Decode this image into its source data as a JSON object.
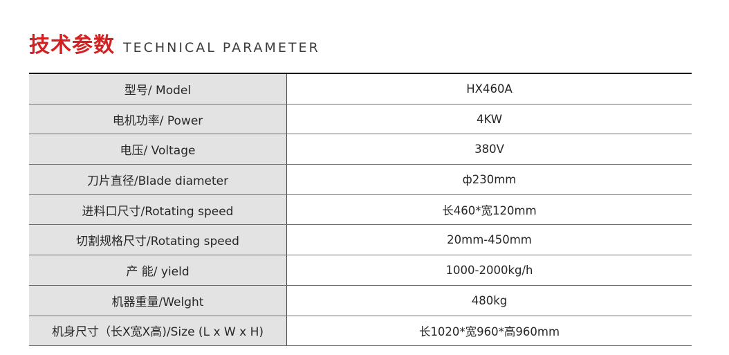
{
  "header": {
    "title_cn": "技术参数",
    "title_en": "TECHNICAL PARAMETER"
  },
  "theme": {
    "accent_red": "#d32121",
    "title_en_color": "#3e3e3e",
    "label_bg": "#e3e3e3",
    "border_dark": "#161616",
    "border_light": "#6d6d6d",
    "divider": "#4a4a4a",
    "text_color": "#272727"
  },
  "table": {
    "rows": [
      {
        "label": "型号/ Model",
        "value": "HX460A"
      },
      {
        "label": "电机功率/ Power",
        "value": "4KW"
      },
      {
        "label": "电压/ Voltage",
        "value": "380V"
      },
      {
        "label": "刀片直径/Blade diameter",
        "value": "ф230mm"
      },
      {
        "label": "进料口尺寸/Rotating speed",
        "value": "长460*宽120mm"
      },
      {
        "label": "切割规格尺寸/Rotating speed",
        "value": "20mm-450mm"
      },
      {
        "label": "产 能/ yield",
        "value": "1000-2000kg/h"
      },
      {
        "label": "机器重量/Welght",
        "value": "480kg"
      },
      {
        "label": "机身尺寸（长X宽X高)/Size (L x W x H)",
        "value": "长1020*宽960*高960mm"
      }
    ]
  }
}
